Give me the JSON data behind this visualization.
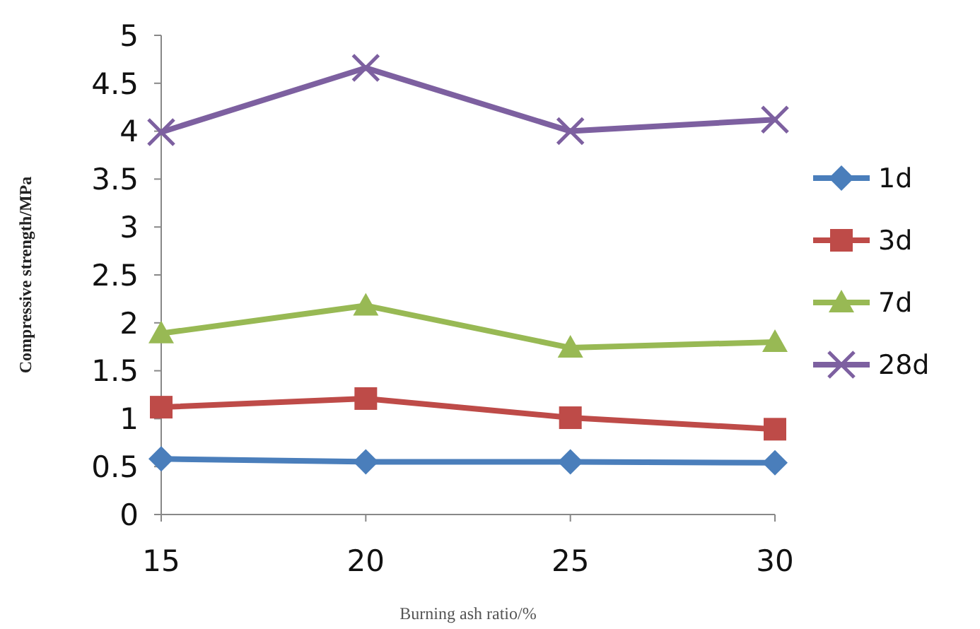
{
  "chart_data": {
    "type": "line",
    "xlabel": "Burning ash ratio/%",
    "ylabel": "Compressive strength/MPa",
    "x": [
      15,
      20,
      25,
      30
    ],
    "xlim": [
      15,
      30
    ],
    "xticks": [
      15,
      20,
      25,
      30
    ],
    "ylim": [
      0,
      5
    ],
    "yticks": [
      0,
      0.5,
      1,
      1.5,
      2,
      2.5,
      3,
      3.5,
      4,
      4.5,
      5
    ],
    "grid": false,
    "legend": "right",
    "series": [
      {
        "name": "1d",
        "color": "#4a7ebb",
        "marker": "diamond",
        "values": [
          0.58,
          0.55,
          0.55,
          0.54
        ]
      },
      {
        "name": "3d",
        "color": "#be4b48",
        "marker": "square",
        "values": [
          1.12,
          1.21,
          1.01,
          0.89
        ]
      },
      {
        "name": "7d",
        "color": "#98b954",
        "marker": "triangle",
        "values": [
          1.89,
          2.18,
          1.74,
          1.8
        ]
      },
      {
        "name": "28d",
        "color": "#7d60a0",
        "marker": "cross",
        "values": [
          3.99,
          4.66,
          4.0,
          4.12
        ]
      }
    ]
  }
}
